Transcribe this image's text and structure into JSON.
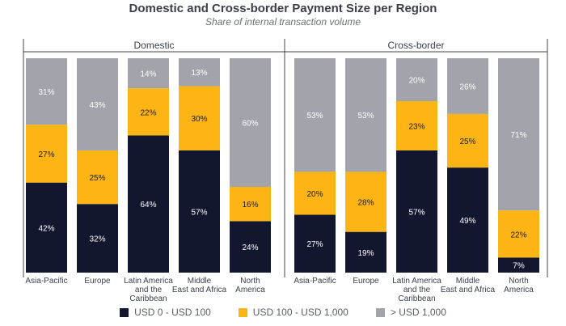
{
  "title": "Domestic and Cross-border Payment Size per Region",
  "subtitle": "Share of internal transaction volume",
  "colors": {
    "low": "#12172f",
    "mid": "#fdb515",
    "high": "#a3a3ab"
  },
  "chart_data": {
    "type": "bar",
    "stacked": true,
    "title": "Domestic and Cross-border Payment Size per Region",
    "subtitle": "Share of internal transaction volume",
    "legend_position": "bottom",
    "series_names": [
      "USD 0 - USD 100",
      "USD 100 - USD 1,000",
      "> USD 1,000"
    ],
    "panels": [
      {
        "name": "Domestic",
        "categories": [
          "Asia-Pacific",
          "Europe",
          "Latin America and the Caribbean",
          "Middle East and Africa",
          "North America"
        ],
        "series": [
          {
            "name": "USD 0 - USD 100",
            "values": [
              42,
              32,
              64,
              57,
              24
            ]
          },
          {
            "name": "USD 100 - USD 1,000",
            "values": [
              27,
              25,
              22,
              30,
              16
            ]
          },
          {
            "name": "> USD 1,000",
            "values": [
              31,
              43,
              14,
              13,
              60
            ]
          }
        ]
      },
      {
        "name": "Cross-border",
        "categories": [
          "Asia-Pacific",
          "Europe",
          "Latin America and the Caribbean",
          "Middle East and Africa",
          "North America"
        ],
        "series": [
          {
            "name": "USD 0 - USD 100",
            "values": [
              27,
              19,
              57,
              49,
              7
            ]
          },
          {
            "name": "USD 100 - USD 1,000",
            "values": [
              20,
              28,
              23,
              25,
              22
            ]
          },
          {
            "name": "> USD 1,000",
            "values": [
              53,
              53,
              20,
              26,
              71
            ]
          }
        ]
      }
    ]
  },
  "category_lines": [
    [
      "Asia-Pacific"
    ],
    [
      "Europe"
    ],
    [
      "Latin America",
      "and the",
      "Caribbean"
    ],
    [
      "Middle",
      "East and Africa"
    ],
    [
      "North",
      "America"
    ]
  ]
}
